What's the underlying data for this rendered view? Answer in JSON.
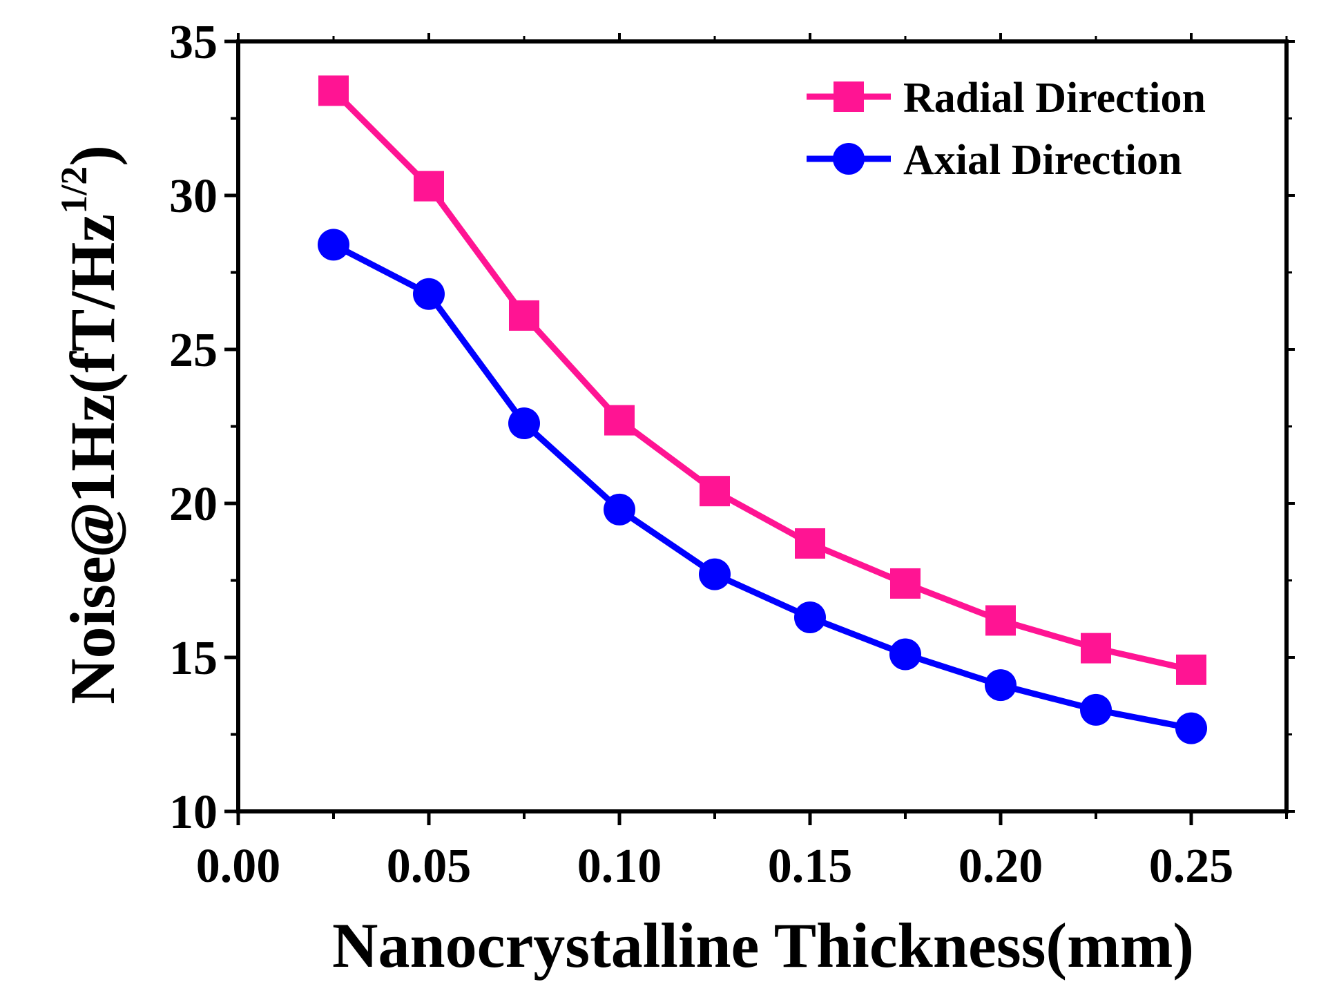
{
  "chart_data": {
    "type": "line",
    "title": "",
    "xlabel": "Nanocrystalline Thickness(mm)",
    "ylabel": {
      "prefix": "Noise",
      "at": "@",
      "freq": "1Hz",
      "units_open": "(fT/Hz",
      "exponent": "1/2",
      "units_close": ")"
    },
    "xlim": [
      0.0,
      0.275
    ],
    "ylim": [
      10,
      35
    ],
    "x_ticks": [
      0.0,
      0.05,
      0.1,
      0.15,
      0.2,
      0.25
    ],
    "x_tick_labels": [
      "0.00",
      "0.05",
      "0.10",
      "0.15",
      "0.20",
      "0.25"
    ],
    "y_ticks": [
      10,
      15,
      20,
      25,
      30,
      35
    ],
    "y_tick_labels": [
      "10",
      "15",
      "20",
      "25",
      "30",
      "35"
    ],
    "x": [
      0.025,
      0.05,
      0.075,
      0.1,
      0.125,
      0.15,
      0.175,
      0.2,
      0.225,
      0.25
    ],
    "series": [
      {
        "name": "Radial Direction",
        "marker": "square",
        "color": "#ff1493",
        "values": [
          33.4,
          30.3,
          26.1,
          22.7,
          20.4,
          18.7,
          17.4,
          16.2,
          15.3,
          14.6
        ]
      },
      {
        "name": "Axial Direction",
        "marker": "circle",
        "color": "#0000ff",
        "values": [
          28.4,
          26.8,
          22.6,
          19.8,
          17.7,
          16.3,
          15.1,
          14.1,
          13.3,
          12.7
        ]
      }
    ],
    "legend_position": "top-right",
    "grid": false
  }
}
